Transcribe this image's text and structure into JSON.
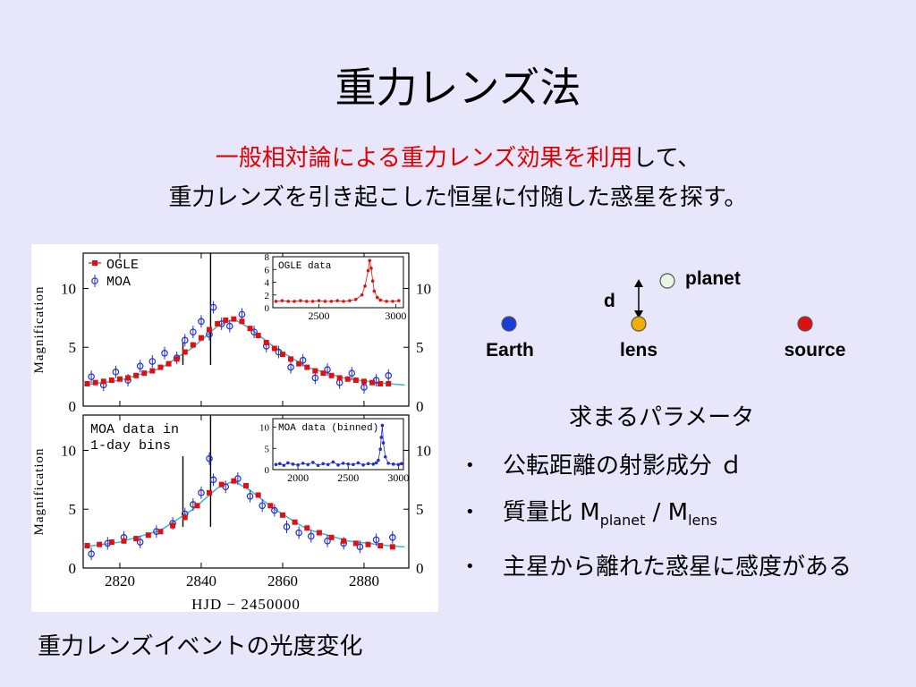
{
  "slide": {
    "title": "重力レンズ法",
    "subtitle_red": "一般相対論による重力レンズ効果を利用",
    "subtitle_rest": "して、",
    "subtitle_line2": "重力レンズを引き起こした恒星に付随した惑星を探す。",
    "caption": "重力レンズイベントの光度変化"
  },
  "diagram": {
    "labels": {
      "planet": "planet",
      "d": "d",
      "earth": "Earth",
      "lens": "lens",
      "source": "source"
    },
    "colors": {
      "earth": "#1a3cd8",
      "lens": "#f0b000",
      "source": "#e01010",
      "planet": "#e6f5e6"
    }
  },
  "params": {
    "title": "求まるパラメータ",
    "b1": "公転距離の射影成分 ｄ",
    "b2_prefix": "質量比 M",
    "b2_sub1": "planet",
    "b2_mid": " / M",
    "b2_sub2": "lens",
    "b3": "主星から離れた惑星に感度がある"
  },
  "chart_data": [
    {
      "type": "scatter",
      "panel": "top",
      "xlabel": "HJD − 2450000",
      "ylabel": "Magnification",
      "xlim": [
        2811,
        2891
      ],
      "ylim": [
        0,
        13
      ],
      "xticks": [
        2820,
        2840,
        2860,
        2880
      ],
      "yticks": [
        0,
        5,
        10
      ],
      "legend": {
        "position": "top-left",
        "entries": [
          "OGLE",
          "MOA"
        ]
      },
      "colors": {
        "ogle": "#e01010",
        "moa": "#2030c8",
        "model": "#000000",
        "inset_bg": "#ffffff"
      },
      "series": [
        {
          "name": "OGLE",
          "x": [
            2812,
            2814,
            2816,
            2818,
            2820,
            2822,
            2824,
            2826,
            2828,
            2830,
            2832,
            2834,
            2836,
            2838,
            2840,
            2842,
            2844,
            2846,
            2848,
            2850,
            2852,
            2854,
            2856,
            2858,
            2860,
            2862,
            2864,
            2866,
            2868,
            2870,
            2872,
            2874,
            2876,
            2878,
            2880,
            2882,
            2884,
            2886
          ],
          "y": [
            1.9,
            2.0,
            2.1,
            2.2,
            2.3,
            2.4,
            2.6,
            2.8,
            3.0,
            3.3,
            3.6,
            4.0,
            4.6,
            5.2,
            5.8,
            6.5,
            7.0,
            7.3,
            7.4,
            7.2,
            6.6,
            6.0,
            5.4,
            4.9,
            4.4,
            4.0,
            3.6,
            3.3,
            3.0,
            2.8,
            2.6,
            2.4,
            2.3,
            2.2,
            2.1,
            2.0,
            1.9,
            1.9
          ]
        },
        {
          "name": "MOA",
          "x": [
            2813,
            2816,
            2819,
            2822,
            2825,
            2828,
            2831,
            2834,
            2836,
            2838,
            2840,
            2842,
            2843,
            2845,
            2847,
            2850,
            2853,
            2856,
            2859,
            2862,
            2865,
            2868,
            2871,
            2874,
            2877,
            2880,
            2883,
            2886
          ],
          "y": [
            2.5,
            1.8,
            2.9,
            2.2,
            3.4,
            3.8,
            4.5,
            4.1,
            5.6,
            6.3,
            7.2,
            6.1,
            8.4,
            7.0,
            6.8,
            7.8,
            6.3,
            5.1,
            4.6,
            3.3,
            3.9,
            2.4,
            3.1,
            2.0,
            2.8,
            1.6,
            2.2,
            2.6
          ]
        }
      ],
      "model": {
        "x": [
          2811,
          2820,
          2830,
          2838,
          2844,
          2848,
          2852,
          2858,
          2866,
          2876,
          2886,
          2890
        ],
        "y": [
          1.8,
          2.2,
          3.2,
          5.0,
          6.8,
          7.4,
          6.6,
          5.0,
          3.3,
          2.3,
          1.9,
          1.8
        ]
      },
      "spikes": [
        {
          "x": 2835.5,
          "y": 5.4
        },
        {
          "x": 2842.3,
          "y": 13.0
        }
      ],
      "insets": [
        {
          "title": "OGLE data",
          "xticks": [
            2500,
            3000
          ],
          "yticks": [
            0,
            2,
            4,
            6,
            8
          ],
          "xlim": [
            2200,
            3050
          ],
          "ylim": [
            0,
            8
          ],
          "x": [
            2220,
            2260,
            2300,
            2340,
            2380,
            2420,
            2460,
            2500,
            2540,
            2580,
            2620,
            2660,
            2700,
            2740,
            2780,
            2800,
            2820,
            2830,
            2840,
            2850,
            2860,
            2880,
            2900,
            2940,
            2980,
            3020
          ],
          "y": [
            1.0,
            1.1,
            1.0,
            1.0,
            1.1,
            1.0,
            1.0,
            1.1,
            1.0,
            1.0,
            1.1,
            1.0,
            1.1,
            1.3,
            2.0,
            3.4,
            5.8,
            7.4,
            6.2,
            4.2,
            2.6,
            1.6,
            1.2,
            1.0,
            1.0,
            1.1
          ]
        }
      ]
    },
    {
      "type": "scatter",
      "panel": "bottom",
      "title": "MOA data in 1-day bins",
      "xlabel": "HJD − 2450000",
      "ylabel": "Magnification",
      "xlim": [
        2811,
        2891
      ],
      "ylim": [
        0,
        13
      ],
      "xticks": [
        2820,
        2840,
        2860,
        2880
      ],
      "yticks": [
        0,
        5,
        10
      ],
      "series": [
        {
          "name": "OGLE",
          "x": [
            2812,
            2815,
            2818,
            2821,
            2824,
            2827,
            2830,
            2833,
            2836,
            2839,
            2842,
            2845,
            2848,
            2851,
            2854,
            2857,
            2860,
            2863,
            2866,
            2869,
            2872,
            2875,
            2878,
            2881,
            2884,
            2887
          ],
          "y": [
            1.9,
            2.0,
            2.2,
            2.3,
            2.5,
            2.8,
            3.1,
            3.6,
            4.3,
            5.3,
            6.4,
            7.1,
            7.4,
            7.0,
            6.2,
            5.3,
            4.5,
            3.9,
            3.4,
            3.0,
            2.6,
            2.3,
            2.1,
            2.0,
            1.9,
            1.8
          ]
        },
        {
          "name": "MOA",
          "x": [
            2813,
            2817,
            2821,
            2825,
            2829,
            2833,
            2836,
            2838,
            2840,
            2842,
            2843,
            2846,
            2849,
            2852,
            2855,
            2858,
            2861,
            2864,
            2867,
            2871,
            2875,
            2879,
            2883,
            2887
          ],
          "y": [
            1.2,
            2.1,
            2.6,
            2.2,
            3.1,
            3.8,
            4.6,
            5.4,
            6.4,
            9.3,
            7.5,
            6.9,
            7.6,
            6.1,
            5.3,
            4.9,
            3.5,
            3.0,
            2.7,
            2.3,
            2.1,
            1.8,
            2.4,
            2.6
          ]
        }
      ],
      "model": {
        "x": [
          2811,
          2820,
          2830,
          2838,
          2844,
          2848,
          2852,
          2858,
          2866,
          2876,
          2886,
          2890
        ],
        "y": [
          1.8,
          2.2,
          3.2,
          5.0,
          6.8,
          7.4,
          6.6,
          5.0,
          3.3,
          2.3,
          1.9,
          1.8
        ]
      },
      "spikes": [
        {
          "x": 2835.5,
          "y": 9.5
        },
        {
          "x": 2842.3,
          "y": 13.0
        }
      ],
      "insets": [
        {
          "title": "MOA data (binned)",
          "xticks": [
            2000,
            2500,
            3000
          ],
          "yticks": [
            0,
            5,
            10
          ],
          "xlim": [
            1750,
            3050
          ],
          "ylim": [
            0,
            12
          ],
          "x": [
            1780,
            1820,
            1860,
            1900,
            1950,
            2000,
            2050,
            2100,
            2150,
            2200,
            2250,
            2300,
            2350,
            2400,
            2450,
            2500,
            2550,
            2600,
            2650,
            2700,
            2750,
            2780,
            2800,
            2820,
            2830,
            2840,
            2850,
            2870,
            2900,
            2950,
            3000,
            3030
          ],
          "y": [
            1.2,
            1.4,
            1.0,
            1.6,
            1.3,
            1.1,
            1.5,
            1.2,
            1.7,
            1.0,
            1.4,
            1.2,
            1.8,
            1.1,
            1.5,
            1.3,
            1.2,
            1.6,
            1.1,
            1.4,
            1.3,
            1.6,
            2.2,
            4.8,
            7.6,
            10.4,
            6.3,
            3.0,
            1.5,
            1.3,
            1.2,
            1.4
          ]
        }
      ]
    }
  ]
}
